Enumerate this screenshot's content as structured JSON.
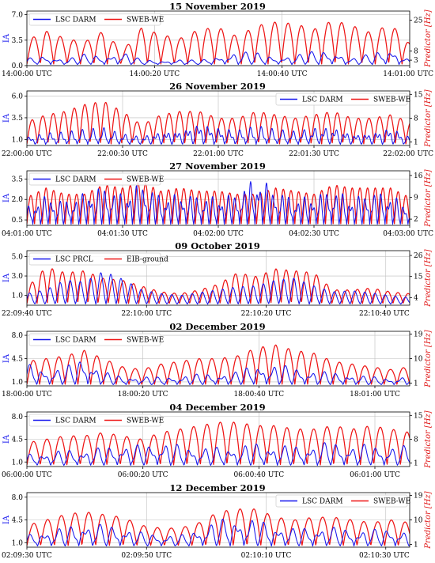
{
  "chart_data": [
    {
      "type": "line",
      "title": "15 November 2019",
      "ylabel_left": "IA",
      "ylabel_right": "Predictor [Hz]",
      "left_ticks": [
        "0.0",
        "3.5",
        "7.0"
      ],
      "left_ylim": [
        0,
        7.5
      ],
      "right_ticks": [
        "3",
        "8",
        "25"
      ],
      "right_tick_values": [
        3,
        8,
        25
      ],
      "right_ylim": [
        0,
        30
      ],
      "x_ticks": [
        "14:00:00 UTC",
        "14:00:20 UTC",
        "14:00:40 UTC",
        "14:01:00 UTC"
      ],
      "x_tick_values": [
        0,
        20,
        40,
        60
      ],
      "xlim": [
        0,
        60
      ],
      "legend_loc": "upper-left",
      "series": [
        {
          "name": "LSC DARM",
          "color": "#1515ee",
          "axis": "left",
          "period": 2.1,
          "x": [
            0,
            3,
            6,
            9,
            12,
            15,
            18,
            21,
            24,
            27,
            30,
            33,
            36,
            39,
            42,
            45,
            48,
            51,
            54,
            57,
            60
          ],
          "y": [
            1.0,
            1.5,
            0.9,
            1.6,
            1.4,
            2.0,
            0.8,
            0.7,
            0.9,
            0.7,
            1.4,
            2.0,
            1.8,
            1.3,
            1.5,
            2.0,
            2.2,
            1.0,
            1.7,
            2.6,
            0.8
          ]
        },
        {
          "name": "SWEB-WE",
          "color": "#ee1515",
          "axis": "right",
          "period": 2.1,
          "x": [
            0,
            3,
            6,
            9,
            12,
            15,
            18,
            21,
            24,
            27,
            30,
            33,
            36,
            39,
            42,
            45,
            48,
            51,
            54,
            57,
            60
          ],
          "y": [
            14,
            19,
            15,
            13,
            19,
            8,
            21,
            17,
            15,
            20,
            21,
            16,
            22,
            24,
            23,
            20,
            25,
            22,
            18,
            23,
            12
          ]
        }
      ],
      "grid": true
    },
    {
      "type": "line",
      "title": "26 November 2019",
      "ylabel_left": "IA",
      "ylabel_right": "Predictor [Hz]",
      "left_ticks": [
        "1.0",
        "3.5",
        "6.0"
      ],
      "left_ylim": [
        0.3,
        6.6
      ],
      "right_ticks": [
        "1",
        "8",
        "15"
      ],
      "right_tick_values": [
        1,
        8,
        15
      ],
      "right_ylim": [
        0,
        16
      ],
      "x_ticks": [
        "22:00:00 UTC",
        "22:00:30 UTC",
        "22:01:00 UTC",
        "22:01:30 UTC",
        "22:02:00 UTC"
      ],
      "x_tick_values": [
        0,
        30,
        60,
        90,
        120
      ],
      "xlim": [
        0,
        120
      ],
      "legend_loc": "upper-right",
      "series": [
        {
          "name": "LSC DARM",
          "color": "#1515ee",
          "axis": "left",
          "period": 3.3,
          "x": [
            0,
            6,
            12,
            18,
            24,
            30,
            36,
            42,
            48,
            54,
            60,
            66,
            72,
            78,
            84,
            90,
            96,
            102,
            108,
            114,
            120
          ],
          "y": [
            1.3,
            1.8,
            1.9,
            2.2,
            2.4,
            1.7,
            1.4,
            2.0,
            2.1,
            3.0,
            2.4,
            2.1,
            2.6,
            2.2,
            2.0,
            2.4,
            2.5,
            1.7,
            1.8,
            2.5,
            1.3
          ]
        },
        {
          "name": "SWEB-WE",
          "color": "#ee1515",
          "axis": "right",
          "period": 3.3,
          "x": [
            0,
            6,
            12,
            18,
            24,
            30,
            36,
            42,
            48,
            54,
            60,
            66,
            72,
            78,
            84,
            90,
            96,
            102,
            108,
            114,
            120
          ],
          "y": [
            7,
            9,
            10,
            12,
            13,
            10,
            6,
            9,
            10,
            10,
            8,
            8,
            10,
            9,
            8,
            9,
            10,
            8,
            8,
            9,
            7
          ]
        }
      ],
      "grid": true
    },
    {
      "type": "line",
      "title": "27 November 2019",
      "ylabel_left": "IA",
      "ylabel_right": "Predictor [Hz]",
      "left_ticks": [
        "0.5",
        "2.0",
        "3.5"
      ],
      "left_ylim": [
        0.1,
        4.1
      ],
      "right_ticks": [
        "2",
        "9",
        "16"
      ],
      "right_tick_values": [
        2,
        9,
        16
      ],
      "right_ylim": [
        0,
        17.5
      ],
      "x_ticks": [
        "04:01:00 UTC",
        "04:01:30 UTC",
        "04:02:00 UTC",
        "04:02:30 UTC",
        "04:03:00 UTC"
      ],
      "x_tick_values": [
        0,
        30,
        60,
        90,
        120
      ],
      "xlim": [
        0,
        120
      ],
      "legend_loc": "upper-left",
      "series": [
        {
          "name": "LSC DARM",
          "color": "#1515ee",
          "axis": "left",
          "period": 2.4,
          "x": [
            0,
            6,
            12,
            18,
            24,
            30,
            36,
            42,
            48,
            54,
            60,
            66,
            72,
            78,
            84,
            90,
            96,
            102,
            108,
            114,
            120
          ],
          "y": [
            1.5,
            2.3,
            1.9,
            2.5,
            3.0,
            2.4,
            3.3,
            2.3,
            2.4,
            2.3,
            2.2,
            2.5,
            3.8,
            2.7,
            2.1,
            2.3,
            2.8,
            2.1,
            2.6,
            2.4,
            1.5
          ]
        },
        {
          "name": "SWEB-WE",
          "color": "#ee1515",
          "axis": "right",
          "period": 2.4,
          "x": [
            0,
            6,
            12,
            18,
            24,
            30,
            36,
            42,
            48,
            54,
            60,
            66,
            72,
            78,
            84,
            90,
            96,
            102,
            108,
            114,
            120
          ],
          "y": [
            9,
            12,
            10,
            10,
            13,
            12,
            14,
            11,
            12,
            11,
            11,
            10,
            10,
            12,
            11,
            10,
            13,
            12,
            12,
            12,
            9
          ]
        }
      ],
      "grid": true
    },
    {
      "type": "line",
      "title": "09 October 2019",
      "ylabel_left": "IA",
      "ylabel_right": "Predictor [Hz]",
      "left_ticks": [
        "1.0",
        "3.0",
        "5.0"
      ],
      "left_ylim": [
        0,
        5.6
      ],
      "right_ticks": [
        "4",
        "15",
        "26"
      ],
      "right_tick_values": [
        4,
        15,
        26
      ],
      "right_ylim": [
        0,
        28.5
      ],
      "x_ticks": [
        "22:09:40 UTC",
        "22:10:00 UTC",
        "22:10:20 UTC",
        "22:10:40 UTC"
      ],
      "x_tick_values": [
        0,
        20,
        40,
        60
      ],
      "xlim": [
        0,
        64
      ],
      "legend_loc": "upper-left",
      "series": [
        {
          "name": "LSC PRCL",
          "color": "#1515ee",
          "axis": "left",
          "period": 1.7,
          "x": [
            0,
            3.2,
            6.4,
            9.6,
            12.8,
            16,
            19.2,
            22.4,
            25.6,
            28.8,
            32,
            35.2,
            38.4,
            41.6,
            44.8,
            48,
            51.2,
            54.4,
            57.6,
            60.8,
            64
          ],
          "y": [
            1.2,
            1.6,
            2.6,
            2.4,
            3.5,
            2.7,
            1.6,
            1.2,
            1.0,
            1.3,
            1.6,
            1.9,
            2.0,
            2.6,
            2.8,
            2.0,
            1.4,
            1.5,
            1.3,
            1.0,
            0.8
          ]
        },
        {
          "name": "EIB-ground",
          "color": "#ee1515",
          "axis": "right",
          "period": 1.7,
          "x": [
            0,
            3.2,
            6.4,
            9.6,
            12.8,
            16,
            19.2,
            22.4,
            25.6,
            28.8,
            32,
            35.2,
            38.4,
            41.6,
            44.8,
            48,
            51.2,
            54.4,
            57.6,
            60.8,
            64
          ],
          "y": [
            9,
            20,
            17,
            18,
            14,
            13,
            10,
            7,
            6,
            8,
            11,
            17,
            15,
            19,
            18,
            17,
            8,
            8,
            9,
            7,
            6
          ]
        }
      ],
      "grid": true
    },
    {
      "type": "line",
      "title": "02 December 2019",
      "ylabel_left": "IA",
      "ylabel_right": "Predictor [Hz]",
      "left_ticks": [
        "1.0",
        "4.5",
        "8.0"
      ],
      "left_ylim": [
        0.4,
        8.6
      ],
      "right_ticks": [
        "1",
        "10",
        "19"
      ],
      "right_tick_values": [
        1,
        10,
        19
      ],
      "right_ylim": [
        0,
        20
      ],
      "x_ticks": [
        "18:00:00 UTC",
        "18:00:20 UTC",
        "18:00:40 UTC",
        "18:01:00 UTC"
      ],
      "x_tick_values": [
        0,
        20,
        40,
        60
      ],
      "xlim": [
        0,
        66
      ],
      "legend_loc": "upper-left",
      "series": [
        {
          "name": "LSC DARM",
          "color": "#1515ee",
          "axis": "left",
          "period": 2.2,
          "x": [
            0,
            3.3,
            6.6,
            9.9,
            13.2,
            16.5,
            19.8,
            23.1,
            26.4,
            29.7,
            33,
            36.3,
            39.6,
            42.9,
            46.2,
            49.5,
            52.8,
            56.1,
            59.4,
            62.7,
            66
          ],
          "y": [
            3.8,
            3.0,
            3.2,
            5.0,
            2.6,
            1.8,
            1.9,
            1.7,
            2.0,
            2.2,
            2.3,
            2.6,
            3.8,
            3.6,
            3.3,
            2.8,
            2.4,
            2.2,
            1.8,
            1.6,
            2.0
          ]
        },
        {
          "name": "SWEB-WE",
          "color": "#ee1515",
          "axis": "right",
          "period": 2.2,
          "x": [
            0,
            3.3,
            6.6,
            9.9,
            13.2,
            16.5,
            19.8,
            23.1,
            26.4,
            29.7,
            33,
            36.3,
            39.6,
            42.9,
            46.2,
            49.5,
            52.8,
            56.1,
            59.4,
            62.7,
            66
          ],
          "y": [
            9,
            10,
            11,
            13,
            10,
            7,
            6,
            8,
            9,
            10,
            10,
            11,
            14,
            15,
            13,
            12,
            9,
            8,
            7,
            6,
            7
          ]
        }
      ],
      "grid": true
    },
    {
      "type": "line",
      "title": "04 December 2019",
      "ylabel_left": "IA",
      "ylabel_right": "Predictor [Hz]",
      "left_ticks": [
        "1.0",
        "4.5",
        "8.0"
      ],
      "left_ylim": [
        0.3,
        8.7
      ],
      "right_ticks": [
        "1",
        "8",
        "15"
      ],
      "right_tick_values": [
        1,
        8,
        15
      ],
      "right_ylim": [
        0,
        16
      ],
      "x_ticks": [
        "06:00:00 UTC",
        "06:00:20 UTC",
        "06:00:40 UTC",
        "06:01:00 UTC"
      ],
      "x_tick_values": [
        0,
        20,
        40,
        60
      ],
      "xlim": [
        0,
        66
      ],
      "legend_loc": "upper-left",
      "series": [
        {
          "name": "LSC DARM",
          "color": "#1515ee",
          "axis": "left",
          "period": 2.3,
          "x": [
            0,
            3.3,
            6.6,
            9.9,
            13.2,
            16.5,
            19.8,
            23.1,
            26.4,
            29.7,
            33,
            36.3,
            39.6,
            42.9,
            46.2,
            49.5,
            52.8,
            56.1,
            59.4,
            62.7,
            66
          ],
          "y": [
            2.2,
            2.6,
            2.9,
            3.0,
            3.3,
            3.8,
            3.6,
            4.3,
            3.6,
            3.4,
            3.3,
            3.6,
            3.9,
            3.7,
            3.5,
            3.8,
            4.2,
            3.6,
            3.8,
            3.4,
            3.6
          ]
        },
        {
          "name": "SWEB-WE",
          "color": "#ee1515",
          "axis": "right",
          "period": 2.3,
          "x": [
            0,
            3.3,
            6.6,
            9.9,
            13.2,
            16.5,
            19.8,
            23.1,
            26.4,
            29.7,
            33,
            36.3,
            39.6,
            42.9,
            46.2,
            49.5,
            52.8,
            56.1,
            59.4,
            62.7,
            66
          ],
          "y": [
            7,
            8,
            9,
            9,
            10,
            9,
            8,
            10,
            11,
            12,
            13,
            13,
            12,
            12,
            11,
            11,
            12,
            11,
            12,
            11,
            10
          ]
        }
      ],
      "grid": true
    },
    {
      "type": "line",
      "title": "12 December 2019",
      "ylabel_left": "IA",
      "ylabel_right": "Predictor [Hz]",
      "left_ticks": [
        "1.0",
        "4.5",
        "8.0"
      ],
      "left_ylim": [
        0.3,
        8.7
      ],
      "right_ticks": [
        "1",
        "10",
        "19"
      ],
      "right_tick_values": [
        1,
        10,
        19
      ],
      "right_ylim": [
        0,
        20
      ],
      "x_ticks": [
        "02:09:30 UTC",
        "02:09:50 UTC",
        "02:10:10 UTC",
        "02:10:30 UTC"
      ],
      "x_tick_values": [
        0,
        20,
        40,
        60
      ],
      "xlim": [
        0,
        64
      ],
      "legend_loc": "upper-right",
      "series": [
        {
          "name": "LSC DARM",
          "color": "#1515ee",
          "axis": "left",
          "period": 2.3,
          "x": [
            0,
            3.2,
            6.4,
            9.6,
            12.8,
            16,
            19.2,
            22.4,
            25.6,
            28.8,
            32,
            35.2,
            38.4,
            41.6,
            44.8,
            48,
            51.2,
            54.4,
            57.6,
            60.8,
            64
          ],
          "y": [
            2.2,
            3.0,
            3.4,
            4.2,
            3.8,
            3.6,
            2.6,
            2.4,
            2.1,
            3.4,
            4.6,
            5.0,
            4.6,
            3.8,
            3.2,
            3.6,
            3.4,
            3.2,
            3.0,
            3.4,
            2.6
          ]
        },
        {
          "name": "SWEB-WE",
          "color": "#ee1515",
          "axis": "right",
          "period": 2.3,
          "x": [
            0,
            3.2,
            6.4,
            9.6,
            12.8,
            16,
            19.2,
            22.4,
            25.6,
            28.8,
            32,
            35.2,
            38.4,
            41.6,
            44.8,
            48,
            51.2,
            54.4,
            57.6,
            60.8,
            64
          ],
          "y": [
            8,
            10,
            12,
            13,
            12,
            11,
            8,
            7,
            7,
            9,
            13,
            14,
            14,
            11,
            10,
            11,
            11,
            10,
            9,
            10,
            9
          ]
        }
      ],
      "grid": true
    }
  ]
}
